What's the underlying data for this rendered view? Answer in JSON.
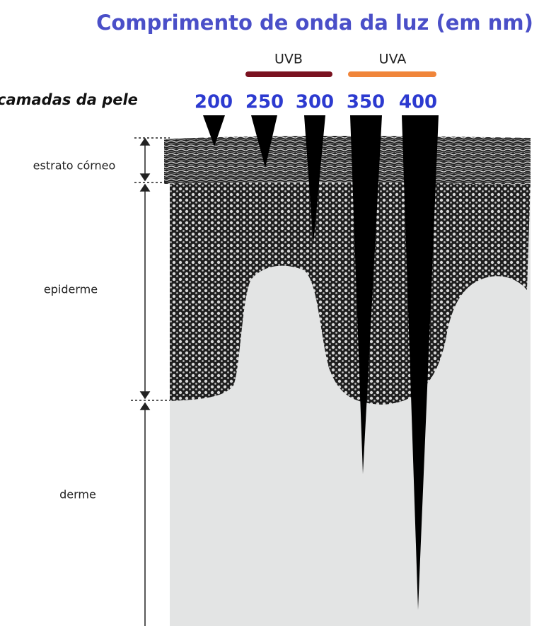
{
  "title": "Comprimento de onda da luz (em nm)",
  "bands": [
    {
      "label": "UVB"
    },
    {
      "label": "UVA"
    }
  ],
  "layers_heading": "camadas da pele",
  "wavelengths": [
    200,
    250,
    300,
    350,
    400
  ],
  "layers": [
    "estrato córneo",
    "epiderme",
    "derme"
  ]
}
